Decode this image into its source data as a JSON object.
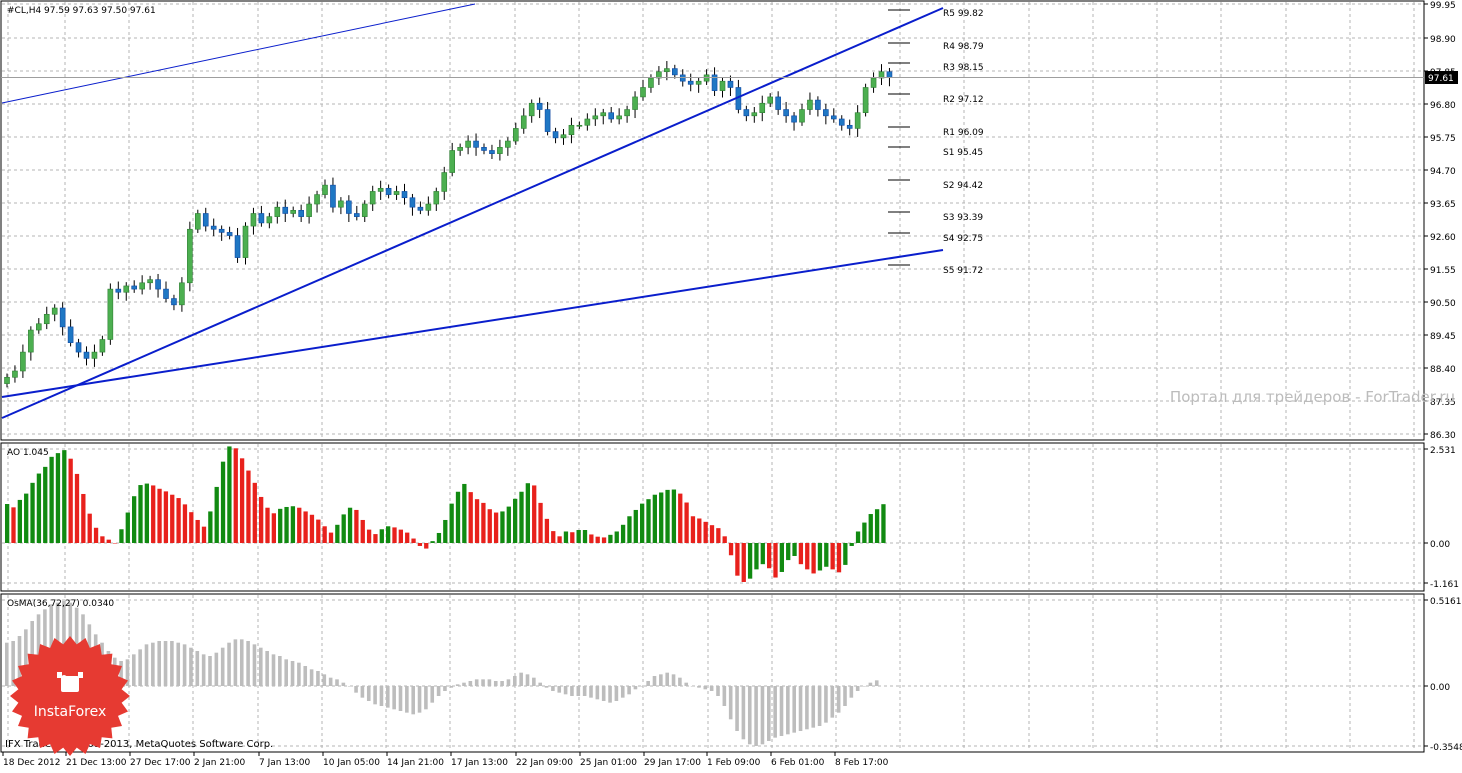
{
  "header": {
    "symbol_line": "#CL,H4  97.59 97.63 97.50 97.61",
    "current_price": "97.61"
  },
  "panes": {
    "price_axis_ticks": [
      "99.95",
      "98.90",
      "97.85",
      "96.80",
      "95.75",
      "94.70",
      "93.65",
      "92.60",
      "91.55",
      "90.50",
      "89.45",
      "88.40",
      "87.35",
      "86.30"
    ],
    "ao_label": "AO 1.045",
    "ao_axis_ticks": [
      "2.531",
      "0.00",
      "-1.161"
    ],
    "osma_label": "OsMA(36,72,27) 0.0340",
    "osma_axis_ticks": [
      "0.5161",
      "0.00",
      "-0.3548"
    ]
  },
  "time_axis": [
    "18 Dec 2012",
    "21 Dec 13:00",
    "27 Dec 17:00",
    "2 Jan 21:00",
    "7 Jan 13:00",
    "10 Jan 05:00",
    "14 Jan 21:00",
    "17 Jan 13:00",
    "22 Jan 09:00",
    "25 Jan 01:00",
    "29 Jan 17:00",
    "1 Feb 09:00",
    "6 Feb 01:00",
    "8 Feb 17:00"
  ],
  "pivot_labels": [
    "R5 99.82",
    "R4 98.79",
    "R3 98.15",
    "R2 97.12",
    "R1 96.09",
    "S1 95.45",
    "S2 94.42",
    "S3 93.39",
    "S4 92.75",
    "S5 91.72"
  ],
  "watermark": "Портал для трейдеров - ForTrader.ru",
  "copyright": "IFX Trader, © 2001-2013, MetaQuotes Software Corp.",
  "logo_text": "InstaForex",
  "colors": {
    "bull": "#4caf50",
    "bear": "#e8211c",
    "trend": "#0a1ecc",
    "grid": "#b4b4b4",
    "osma": "#bdbdbd",
    "logo": "#e63a32"
  },
  "chart_data": {
    "type": "candlestick",
    "title": "#CL,H4",
    "ylim": [
      85.8,
      100.45
    ],
    "series": [
      {
        "name": "#CL,H4 close (approx.)",
        "values": [
          88.1,
          88.3,
          88.9,
          89.6,
          89.8,
          90.1,
          90.3,
          89.7,
          89.2,
          88.9,
          88.7,
          88.9,
          89.3,
          90.9,
          90.8,
          91.0,
          90.9,
          91.1,
          91.2,
          90.9,
          90.6,
          90.4,
          91.1,
          92.8,
          93.3,
          92.9,
          92.8,
          92.7,
          92.6,
          91.9,
          92.9,
          93.3,
          93.0,
          93.2,
          93.5,
          93.3,
          93.4,
          93.2,
          93.6,
          93.9,
          94.2,
          93.5,
          93.7,
          93.3,
          93.2,
          93.6,
          94.0,
          94.1,
          93.9,
          94.0,
          93.8,
          93.5,
          93.4,
          93.6,
          94.0,
          94.6,
          95.3,
          95.4,
          95.6,
          95.4,
          95.3,
          95.2,
          95.4,
          95.6,
          96.0,
          96.4,
          96.8,
          96.6,
          95.9,
          95.7,
          95.8,
          96.1,
          96.1,
          96.3,
          96.4,
          96.5,
          96.3,
          96.4,
          96.6,
          97.0,
          97.3,
          97.6,
          97.8,
          97.9,
          97.7,
          97.5,
          97.4,
          97.5,
          97.7,
          97.2,
          97.5,
          97.3,
          96.6,
          96.4,
          96.5,
          96.8,
          97.0,
          96.6,
          96.4,
          96.2,
          96.6,
          96.9,
          96.6,
          96.4,
          96.3,
          96.1,
          96.0,
          96.5,
          97.3,
          97.6,
          97.8,
          97.61
        ]
      },
      {
        "name": "AO",
        "values": [
          1.05,
          0.96,
          1.16,
          1.33,
          1.62,
          1.87,
          2.05,
          2.32,
          2.42,
          2.5,
          2.27,
          1.86,
          1.32,
          0.79,
          0.41,
          0.18,
          0.09,
          0.0,
          0.37,
          0.82,
          1.26,
          1.56,
          1.6,
          1.55,
          1.46,
          1.39,
          1.3,
          1.21,
          1.04,
          0.83,
          0.62,
          0.44,
          0.85,
          1.51,
          2.19,
          2.6,
          2.55,
          2.28,
          1.95,
          1.62,
          1.24,
          0.95,
          0.8,
          0.92,
          0.97,
          0.99,
          0.95,
          0.85,
          0.76,
          0.63,
          0.45,
          0.28,
          0.49,
          0.77,
          0.95,
          0.89,
          0.62,
          0.36,
          0.24,
          0.37,
          0.45,
          0.42,
          0.36,
          0.28,
          0.12,
          -0.08,
          -0.15,
          0.05,
          0.27,
          0.62,
          1.06,
          1.38,
          1.59,
          1.37,
          1.18,
          1.08,
          0.91,
          0.82,
          0.85,
          0.98,
          1.19,
          1.38,
          1.61,
          1.55,
          1.08,
          0.65,
          0.32,
          0.18,
          0.31,
          0.29,
          0.35,
          0.35,
          0.23,
          0.17,
          0.15,
          0.22,
          0.31,
          0.49,
          0.72,
          0.89,
          1.06,
          1.18,
          1.3,
          1.36,
          1.43,
          1.44,
          1.33,
          1.09,
          0.72,
          0.66,
          0.57,
          0.48,
          0.4,
          0.18,
          -0.33,
          -0.88,
          -1.05,
          -0.96,
          -0.71,
          -0.57,
          -0.68,
          -0.93,
          -0.78,
          -0.46,
          -0.35,
          -0.57,
          -0.71,
          -0.82,
          -0.74,
          -0.64,
          -0.71,
          -0.79,
          -0.59,
          -0.08,
          0.31,
          0.55,
          0.78,
          0.91,
          1.045
        ]
      },
      {
        "name": "OsMA(36,72,27)",
        "values": [
          0.26,
          0.27,
          0.3,
          0.34,
          0.39,
          0.43,
          0.46,
          0.49,
          0.5,
          0.51,
          0.5,
          0.47,
          0.43,
          0.37,
          0.31,
          0.26,
          0.21,
          0.17,
          0.15,
          0.16,
          0.19,
          0.22,
          0.25,
          0.26,
          0.27,
          0.27,
          0.27,
          0.26,
          0.25,
          0.23,
          0.21,
          0.19,
          0.18,
          0.2,
          0.23,
          0.26,
          0.28,
          0.28,
          0.27,
          0.25,
          0.23,
          0.21,
          0.19,
          0.18,
          0.16,
          0.15,
          0.14,
          0.12,
          0.1,
          0.09,
          0.07,
          0.05,
          0.04,
          0.02,
          0.0,
          -0.04,
          -0.07,
          -0.09,
          -0.11,
          -0.12,
          -0.13,
          -0.14,
          -0.15,
          -0.16,
          -0.17,
          -0.16,
          -0.14,
          -0.1,
          -0.06,
          -0.03,
          -0.01,
          0.01,
          0.02,
          0.03,
          0.04,
          0.04,
          0.04,
          0.03,
          0.03,
          0.04,
          0.06,
          0.08,
          0.07,
          0.05,
          0.02,
          -0.01,
          -0.03,
          -0.04,
          -0.05,
          -0.06,
          -0.06,
          -0.06,
          -0.07,
          -0.08,
          -0.09,
          -0.1,
          -0.09,
          -0.07,
          -0.05,
          -0.02,
          0.0,
          0.03,
          0.06,
          0.07,
          0.08,
          0.07,
          0.05,
          0.02,
          0.0,
          -0.01,
          -0.02,
          -0.03,
          -0.06,
          -0.12,
          -0.2,
          -0.27,
          -0.32,
          -0.35,
          -0.36,
          -0.35,
          -0.33,
          -0.31,
          -0.3,
          -0.29,
          -0.28,
          -0.27,
          -0.26,
          -0.25,
          -0.24,
          -0.22,
          -0.19,
          -0.16,
          -0.12,
          -0.07,
          -0.03,
          0.0,
          0.02,
          0.034
        ]
      }
    ]
  }
}
